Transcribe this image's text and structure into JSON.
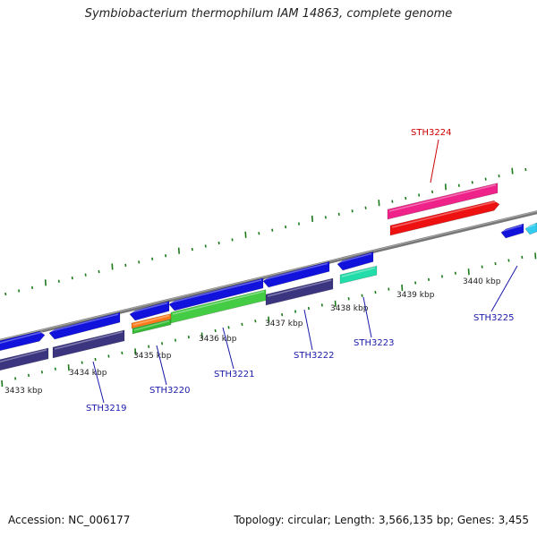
{
  "title": "Symbiobacterium thermophilum IAM 14863, complete genome",
  "footer": {
    "accession": "Accession: NC_006177",
    "summary": "Topology: circular; Length: 3,566,135 bp; Genes: 3,455"
  },
  "colors": {
    "backbone": "#888888",
    "tick": "#1a7a1a",
    "gene_label": "#1a1aaa",
    "highlight_label": "#cc0000"
  },
  "kbp_labels": [
    "3433 kbp",
    "3434 kbp",
    "3435 kbp",
    "3436 kbp",
    "3437 kbp",
    "3438 kbp",
    "3439 kbp",
    "3440 kbp"
  ],
  "gene_labels": [
    {
      "text": "STH3219",
      "color": "#1a1aaa"
    },
    {
      "text": "STH3220",
      "color": "#1a1aaa"
    },
    {
      "text": "STH3221",
      "color": "#1a1aaa"
    },
    {
      "text": "STH3222",
      "color": "#1a1aaa"
    },
    {
      "text": "STH3223",
      "color": "#1a1aaa"
    },
    {
      "text": "STH3224",
      "color": "#cc0000"
    },
    {
      "text": "STH3225",
      "color": "#1a1aaa"
    }
  ]
}
